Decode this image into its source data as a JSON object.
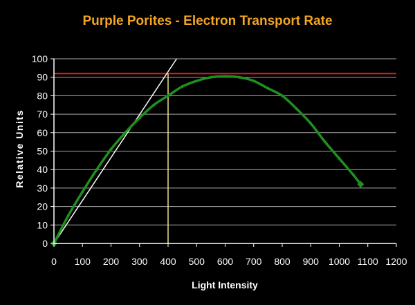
{
  "chart_data": {
    "type": "line",
    "title": "Purple Porites - Electron Transport Rate",
    "xlabel": "Light Intensity",
    "ylabel": "Relative Units",
    "xlim": [
      0,
      1200
    ],
    "ylim": [
      0,
      100
    ],
    "x_ticks": [
      "0",
      "100",
      "200",
      "300",
      "400",
      "500",
      "600",
      "700",
      "800",
      "900",
      "1000",
      "1100",
      "1200"
    ],
    "y_ticks": [
      "0",
      "10",
      "20",
      "30",
      "40",
      "50",
      "60",
      "70",
      "80",
      "90",
      "100"
    ],
    "grid": true,
    "series": [
      {
        "color": "#1f8f1f",
        "x": [
          0,
          50,
          100,
          150,
          200,
          250,
          300,
          350,
          400,
          450,
          500,
          550,
          600,
          650,
          700,
          750,
          800,
          850,
          900,
          950,
          1000,
          1050,
          1075
        ],
        "y": [
          0,
          15,
          28,
          40,
          51,
          60,
          68,
          75,
          80,
          85,
          88,
          90,
          90.5,
          90,
          88,
          84,
          80,
          73,
          65,
          55,
          46,
          37,
          32
        ]
      }
    ],
    "reference_lines": {
      "max_level": {
        "y": 92,
        "color": "#cc2222"
      },
      "onset_intensity": {
        "x": 400,
        "color": "#f0e68c"
      },
      "initial_slope": {
        "x": [
          0,
          430
        ],
        "y": [
          0,
          100
        ],
        "color": "#ffffff"
      }
    }
  },
  "colors": {
    "background": "#000000",
    "title": "#f5a623",
    "grid": "#aaaaaa",
    "text": "#ffffff"
  }
}
